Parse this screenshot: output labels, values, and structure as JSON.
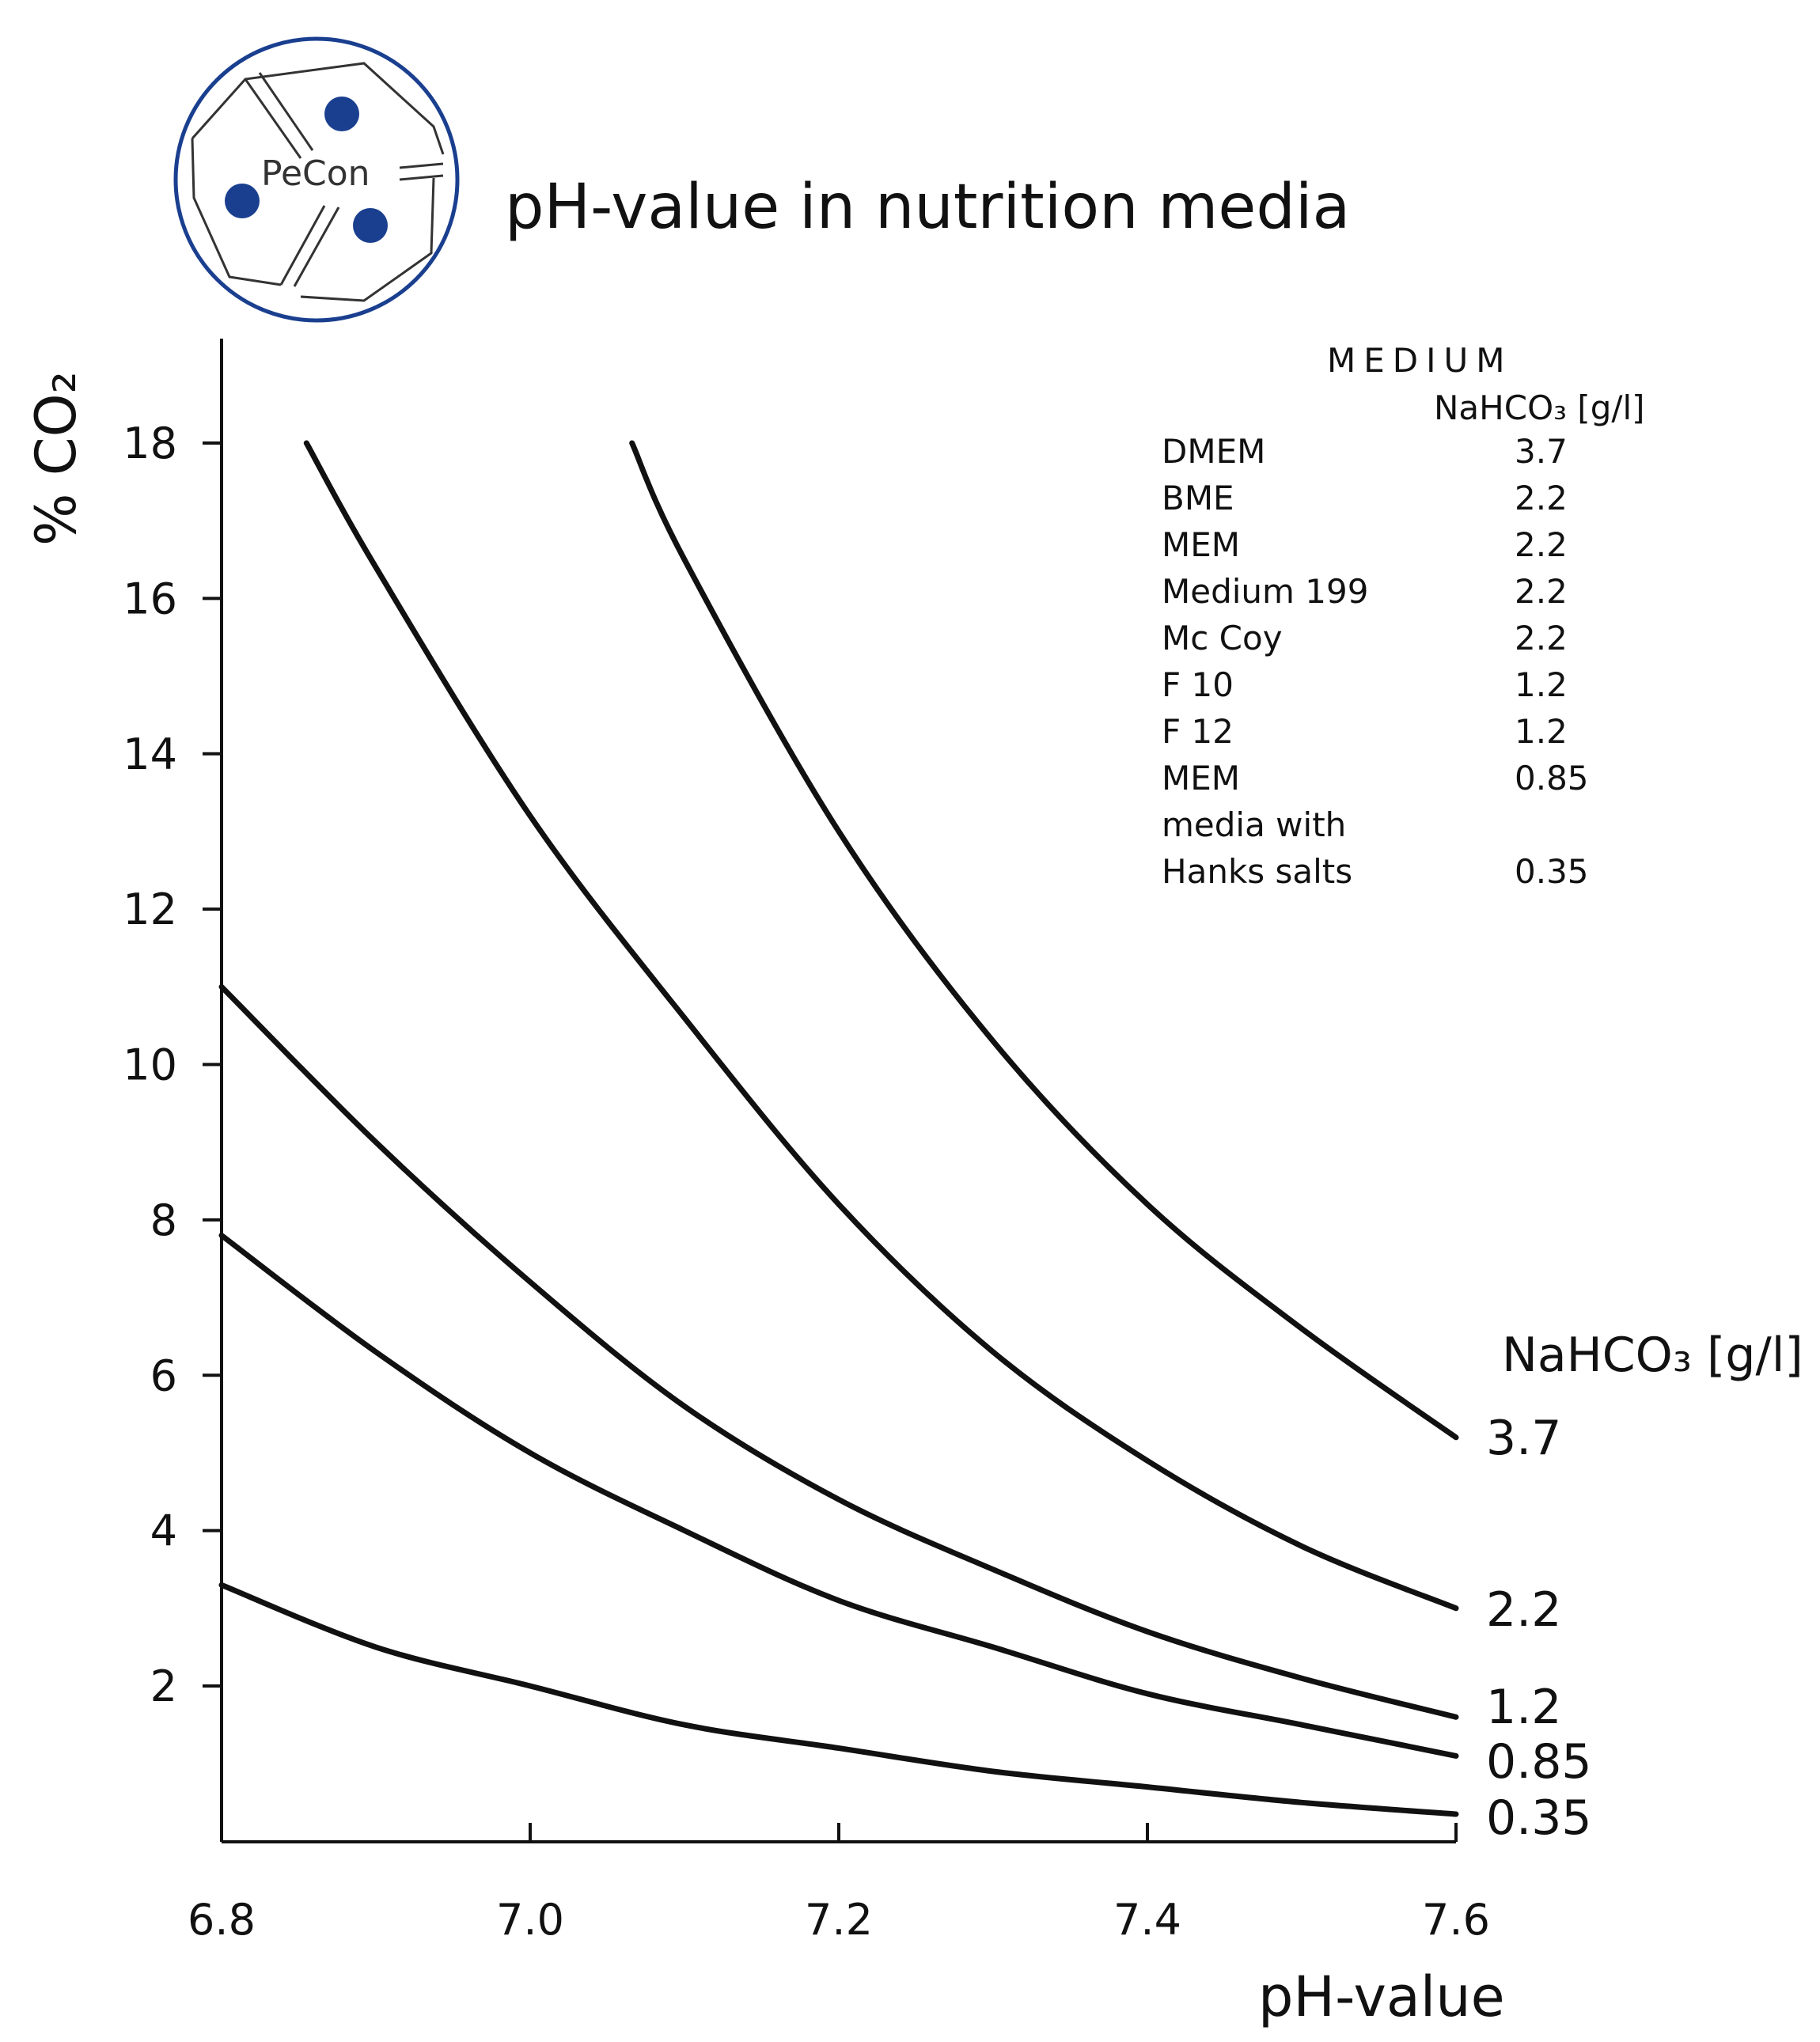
{
  "header": {
    "title": "pH-value in nutrition media",
    "logo_text": "PeCon",
    "logo_color": "#1a3f8f"
  },
  "chart_data": {
    "type": "line",
    "title": "pH-value in nutrition media",
    "xlabel": "pH-value",
    "ylabel": "% CO₂",
    "xlim": [
      6.8,
      7.6
    ],
    "ylim": [
      0,
      19
    ],
    "x_ticks": [
      "6.8",
      "7.0",
      "7.2",
      "7.4",
      "7.6"
    ],
    "y_ticks": [
      "2",
      "4",
      "6",
      "8",
      "10",
      "12",
      "14",
      "16",
      "18"
    ],
    "grid": false,
    "series_label_title": "NaHCO₃ [g/l]",
    "series": [
      {
        "name": "3.7",
        "x": [
          7.066,
          7.1,
          7.2,
          7.3,
          7.4,
          7.5,
          7.6
        ],
        "y": [
          18,
          16.5,
          13,
          10.3,
          8.2,
          6.6,
          5.2
        ]
      },
      {
        "name": "2.2",
        "x": [
          6.855,
          6.9,
          7.0,
          7.1,
          7.2,
          7.3,
          7.4,
          7.5,
          7.6
        ],
        "y": [
          18,
          16.4,
          13.2,
          10.6,
          8.2,
          6.3,
          4.9,
          3.8,
          3.0
        ]
      },
      {
        "name": "1.2",
        "x": [
          6.8,
          6.9,
          7.0,
          7.1,
          7.2,
          7.3,
          7.4,
          7.5,
          7.6
        ],
        "y": [
          11.0,
          9.0,
          7.2,
          5.6,
          4.4,
          3.5,
          2.7,
          2.1,
          1.6
        ]
      },
      {
        "name": "0.85",
        "x": [
          6.8,
          6.9,
          7.0,
          7.1,
          7.2,
          7.3,
          7.4,
          7.5,
          7.6
        ],
        "y": [
          7.8,
          6.3,
          5.0,
          4.0,
          3.1,
          2.5,
          1.9,
          1.5,
          1.1
        ]
      },
      {
        "name": "0.35",
        "x": [
          6.8,
          6.9,
          7.0,
          7.1,
          7.2,
          7.3,
          7.4,
          7.5,
          7.6
        ],
        "y": [
          3.3,
          2.5,
          2.0,
          1.5,
          1.2,
          0.9,
          0.7,
          0.5,
          0.35
        ]
      }
    ]
  },
  "legend_table": {
    "heading": "MEDIUM",
    "subheading": "NaHCO₃ [g/l]",
    "rows": [
      {
        "medium": "DMEM",
        "value": "3.7"
      },
      {
        "medium": "BME",
        "value": "2.2"
      },
      {
        "medium": "MEM",
        "value": "2.2"
      },
      {
        "medium": "Medium 199",
        "value": "2.2"
      },
      {
        "medium": "Mc Coy",
        "value": "2.2"
      },
      {
        "medium": "F 10",
        "value": "1.2"
      },
      {
        "medium": "F 12",
        "value": "1.2"
      },
      {
        "medium": "MEM",
        "value": "0.85"
      },
      {
        "medium": "media with",
        "value": ""
      },
      {
        "medium": "Hanks salts",
        "value": "0.35"
      }
    ]
  }
}
